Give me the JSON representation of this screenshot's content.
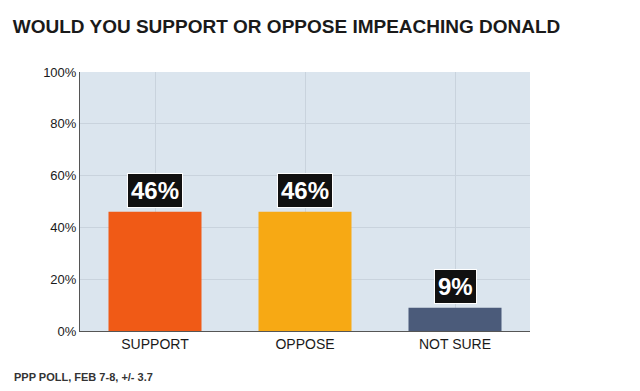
{
  "chart_data": {
    "type": "bar",
    "title": "WOULD YOU SUPPORT OR OPPOSE IMPEACHING DONALD",
    "categories": [
      "SUPPORT",
      "OPPOSE",
      "NOT SURE"
    ],
    "values": [
      46,
      46,
      9
    ],
    "value_labels": [
      "46%",
      "46%",
      "9%"
    ],
    "colors": [
      "#f05a16",
      "#f7a914",
      "#4b5b7a"
    ],
    "ylim": [
      0,
      100
    ],
    "yticks": [
      {
        "value": 0,
        "label": "0%"
      },
      {
        "value": 20,
        "label": "20%"
      },
      {
        "value": 40,
        "label": "40%"
      },
      {
        "value": 60,
        "label": "60%"
      },
      {
        "value": 80,
        "label": "80%"
      },
      {
        "value": 100,
        "label": "100%"
      }
    ],
    "grid": true,
    "data_labels": true,
    "source": "PPP POLL, FEB 7-8, +/- 3.7"
  }
}
